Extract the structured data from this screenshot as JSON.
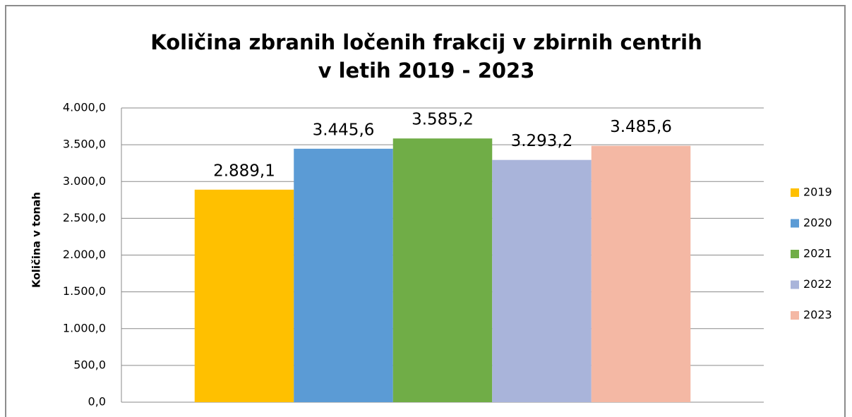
{
  "chart_data": {
    "type": "bar",
    "title": [
      "Količina zbranih ločenih frakcij v zbirnih centrih",
      "v letih 2019 - 2023"
    ],
    "y_label": "Količina v tonah",
    "categories": [
      null
    ],
    "series": [
      {
        "name": "2019",
        "color": "#ffc000",
        "values": [
          2889.1
        ],
        "value_labels": [
          "2.889,1"
        ]
      },
      {
        "name": "2020",
        "color": "#5b9bd5",
        "values": [
          3445.6
        ],
        "value_labels": [
          "3.445,6"
        ]
      },
      {
        "name": "2021",
        "color": "#70ad47",
        "values": [
          3585.2
        ],
        "value_labels": [
          "3.585,2"
        ]
      },
      {
        "name": "2022",
        "color": "#a9b4da",
        "values": [
          3293.2
        ],
        "value_labels": [
          "3.293,2"
        ]
      },
      {
        "name": "2023",
        "color": "#f4b8a4",
        "values": [
          3485.6
        ],
        "value_labels": [
          "3.485,6"
        ]
      }
    ],
    "ylim": [
      0,
      4000
    ],
    "yticks": [
      {
        "value": 0,
        "label": "0,0"
      },
      {
        "value": 500,
        "label": "500,0"
      },
      {
        "value": 1000,
        "label": "1.000,0"
      },
      {
        "value": 1500,
        "label": "1.500,0"
      },
      {
        "value": 2000,
        "label": "2.000,0"
      },
      {
        "value": 2500,
        "label": "2.500,0"
      },
      {
        "value": 3000,
        "label": "3.000,0"
      },
      {
        "value": 3500,
        "label": "3.500,0"
      },
      {
        "value": 4000,
        "label": "4.000,0"
      }
    ],
    "grid": true,
    "legend": "right"
  }
}
